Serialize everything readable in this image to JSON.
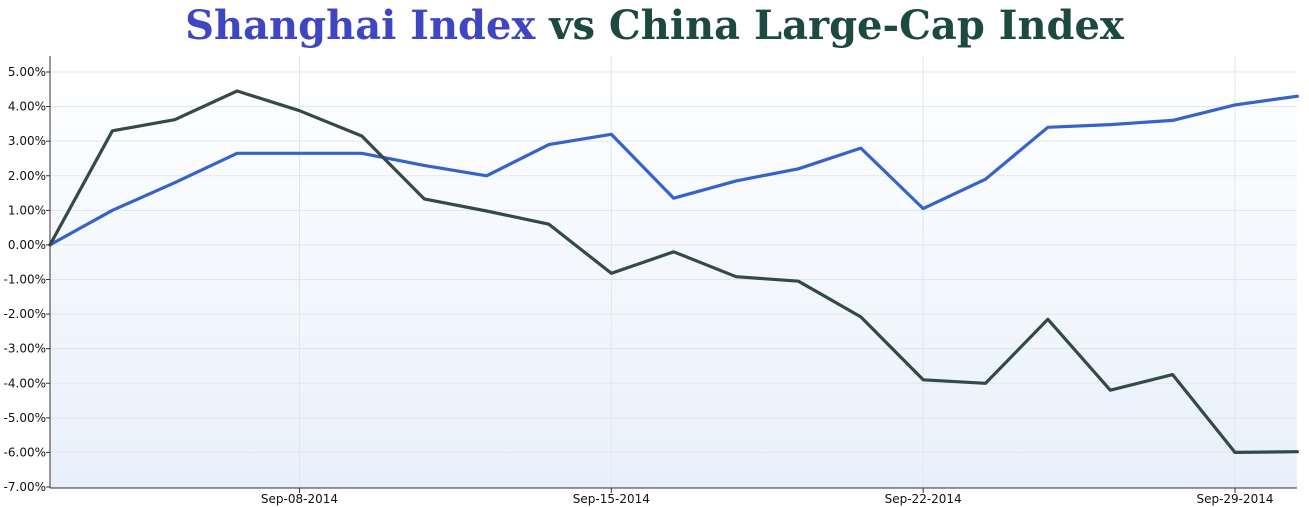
{
  "title": {
    "part1": "Shanghai Index",
    "part2": "vs China Large-Cap Index",
    "color1": "#4046c2",
    "color2": "#1d4a40"
  },
  "chart_data": {
    "type": "line",
    "x": [
      "2014-09-04",
      "2014-09-05",
      "2014-09-06",
      "2014-09-07",
      "2014-09-08",
      "2014-09-09",
      "2014-09-10",
      "2014-09-11",
      "2014-09-12",
      "2014-09-15",
      "2014-09-16",
      "2014-09-17",
      "2014-09-18",
      "2014-09-19",
      "2014-09-22",
      "2014-09-23",
      "2014-09-24",
      "2014-09-25",
      "2014-09-26",
      "2014-09-29",
      "2014-09-30"
    ],
    "series": [
      {
        "color": "#3563c9",
        "values": [
          0.0,
          1.0,
          1.8,
          2.65,
          2.65,
          2.65,
          2.3,
          2.0,
          2.9,
          3.2,
          1.35,
          1.85,
          2.2,
          2.8,
          1.05,
          1.9,
          3.4,
          3.48,
          3.6,
          4.05,
          4.3
        ]
      },
      {
        "color": "#334a47",
        "values": [
          0.0,
          3.3,
          3.62,
          4.45,
          3.88,
          3.15,
          1.33,
          0.98,
          0.6,
          -0.82,
          -0.2,
          -0.92,
          -1.05,
          -2.08,
          -3.9,
          -4.0,
          -2.15,
          -4.2,
          -3.75,
          -6.0,
          -5.98
        ]
      }
    ],
    "xticks": [
      "Sep-08-2014",
      "Sep-15-2014",
      "Sep-22-2014",
      "Sep-29-2014"
    ],
    "xtick_dates": [
      "2014-09-08",
      "2014-09-15",
      "2014-09-22",
      "2014-09-29"
    ],
    "yticks": [
      "5.00%",
      "4.00%",
      "3.00%",
      "2.00%",
      "1.00%",
      "0.00%",
      "-1.00%",
      "-2.00%",
      "-3.00%",
      "-4.00%",
      "-5.00%",
      "-6.00%",
      "-7.00%"
    ],
    "ylim": [
      -7,
      5.5
    ],
    "grid": true,
    "background": [
      "#ffffff",
      "#e8f0fb"
    ]
  }
}
